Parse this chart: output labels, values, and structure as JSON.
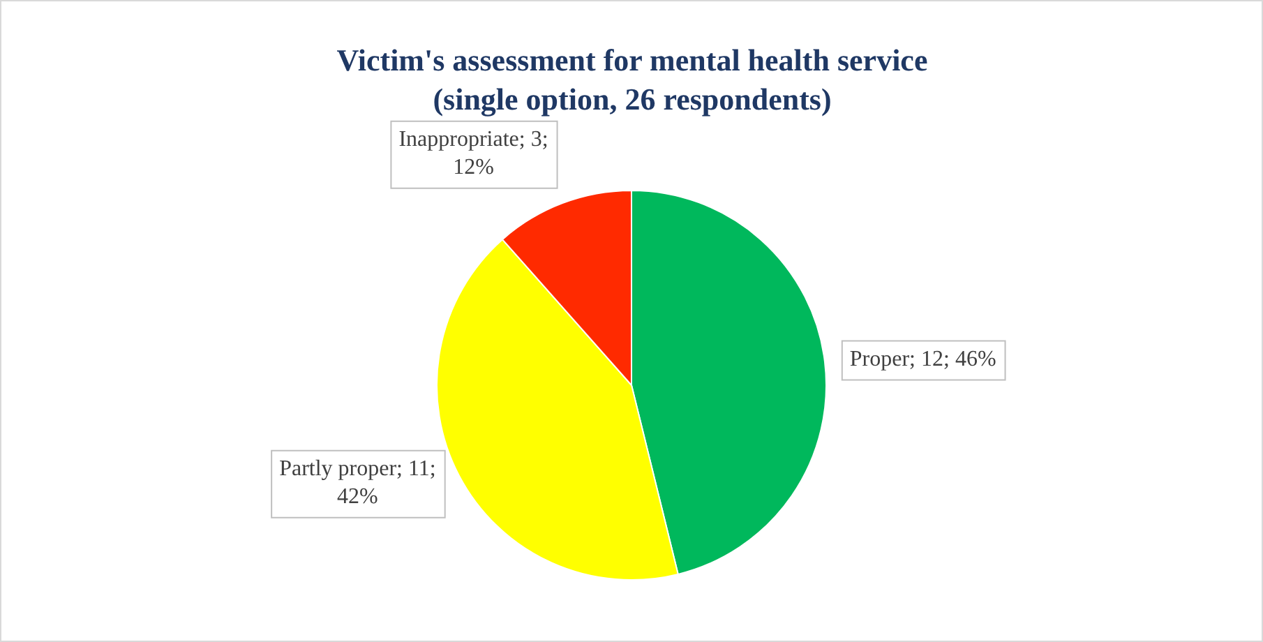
{
  "chart_data": {
    "type": "pie",
    "title": "Victim's assessment for mental health service (single option, 26 respondents)",
    "categories": [
      "Proper",
      "Partly proper",
      "Inappropriate"
    ],
    "values": [
      12,
      11,
      3
    ],
    "colors": [
      "#00b85c",
      "#ffff00",
      "#ff2a00"
    ],
    "value_labels": [
      "12; 46%",
      "11; 42%",
      "3; 12%"
    ],
    "legend": false
  }
}
